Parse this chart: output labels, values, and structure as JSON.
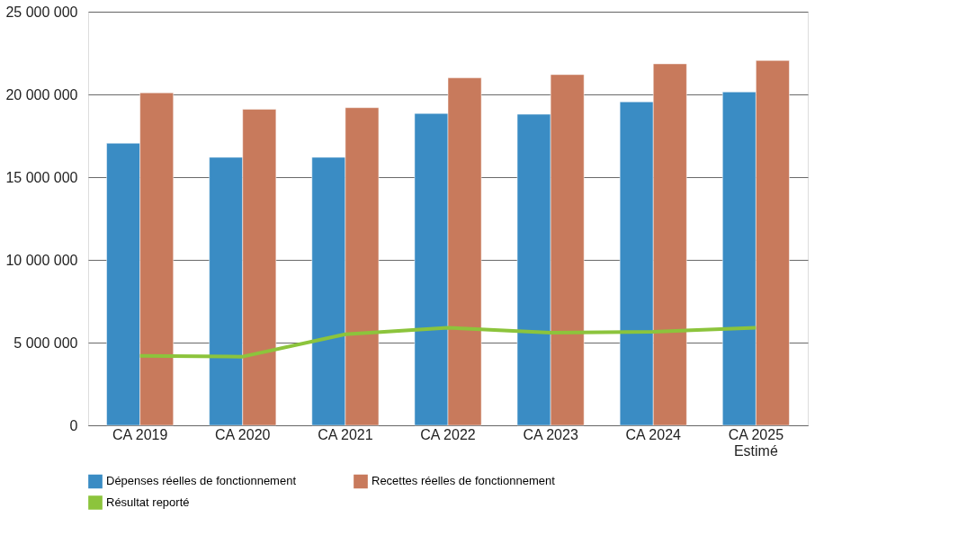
{
  "chart_data": {
    "type": "bar",
    "categories": [
      "CA 2019",
      "CA 2020",
      "CA 2021",
      "CA 2022",
      "CA 2023",
      "CA 2024",
      "CA 2025\nEstimé"
    ],
    "series": [
      {
        "name": "Dépenses réelles de fonctionnement",
        "color": "#3a8cc4",
        "values": [
          17050000,
          16200000,
          16200000,
          18850000,
          18800000,
          19550000,
          20150000
        ]
      },
      {
        "name": "Recettes réelles de fonctionnement",
        "color": "#c87a5c",
        "values": [
          20100000,
          19100000,
          19200000,
          21000000,
          21200000,
          21850000,
          22050000
        ]
      },
      {
        "name": "Résultat reporté",
        "type": "line",
        "color": "#8cc43c",
        "values": [
          4200000,
          4150000,
          5500000,
          5900000,
          5600000,
          5650000,
          5900000
        ]
      }
    ],
    "ylim": [
      0,
      25000000
    ],
    "yticks": [
      {
        "value": 0,
        "label": "0"
      },
      {
        "value": 5000000,
        "label": "5 000 000"
      },
      {
        "value": 10000000,
        "label": "10 000 000"
      },
      {
        "value": 15000000,
        "label": "15 000 000"
      },
      {
        "value": 20000000,
        "label": "20 000 000"
      },
      {
        "value": 25000000,
        "label": "25 000 000"
      }
    ],
    "grid": "y",
    "legend": "bottom",
    "marker": "none",
    "line_style": "solid"
  }
}
